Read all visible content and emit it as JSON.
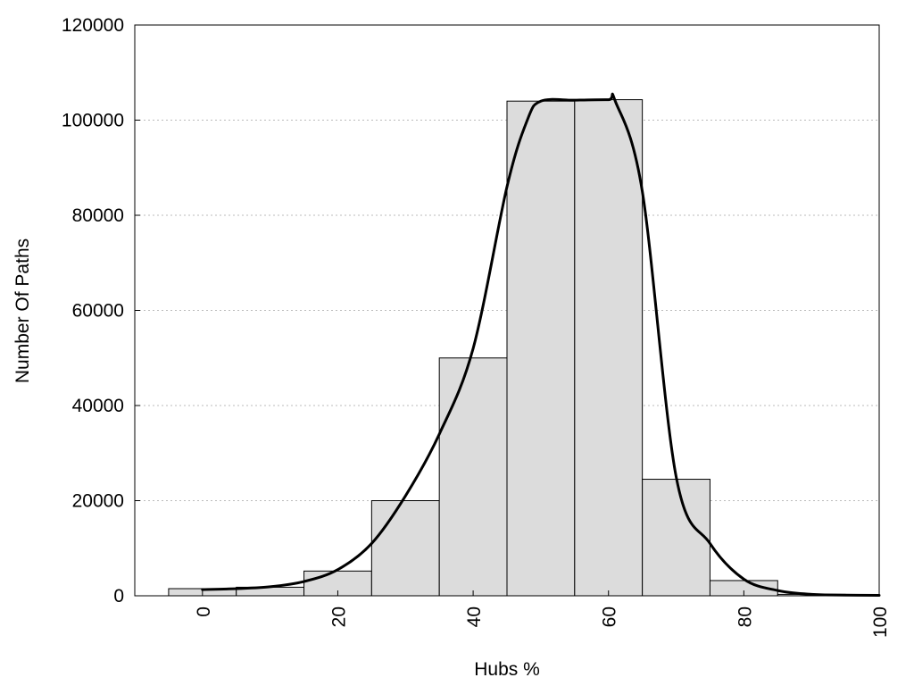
{
  "chart_data": {
    "type": "bar",
    "title": "",
    "xlabel": "Hubs %",
    "ylabel": "Number Of Paths",
    "xlim": [
      -10,
      100
    ],
    "ylim": [
      0,
      120000
    ],
    "x_ticks": [
      "0",
      "20",
      "40",
      "60",
      "80",
      "100"
    ],
    "y_ticks": [
      "0",
      "20000",
      "40000",
      "60000",
      "80000",
      "100000",
      "120000"
    ],
    "grid": "horizontal dotted",
    "legend": "none",
    "bin_width": 10,
    "bins": [
      0,
      10,
      20,
      30,
      40,
      50,
      60,
      70,
      80,
      90
    ],
    "values": [
      1500,
      1800,
      5200,
      20000,
      50000,
      104000,
      104300,
      24500,
      3200,
      300
    ],
    "series": [
      {
        "type": "bar",
        "x": [
          0,
          10,
          20,
          30,
          40,
          50,
          60,
          70,
          80,
          90
        ],
        "values": [
          1500,
          1800,
          5200,
          20000,
          50000,
          104000,
          104300,
          24500,
          3200,
          300
        ]
      },
      {
        "type": "line",
        "x": [
          0,
          5,
          10,
          15,
          20,
          25,
          30,
          35,
          40,
          45,
          48,
          50,
          55,
          60,
          61,
          65,
          70,
          75,
          80,
          85,
          90,
          95,
          100
        ],
        "y": [
          1300,
          1500,
          1900,
          3000,
          5500,
          11000,
          21000,
          34000,
          52000,
          86000,
          100000,
          104000,
          104200,
          104300,
          104000,
          85000,
          25000,
          11000,
          3500,
          1100,
          300,
          150,
          100
        ]
      }
    ],
    "colors": {
      "bar_fill": "#dcdcdc",
      "bar_stroke": "#000000",
      "line": "#000000",
      "grid": "#bbbbbb"
    }
  }
}
